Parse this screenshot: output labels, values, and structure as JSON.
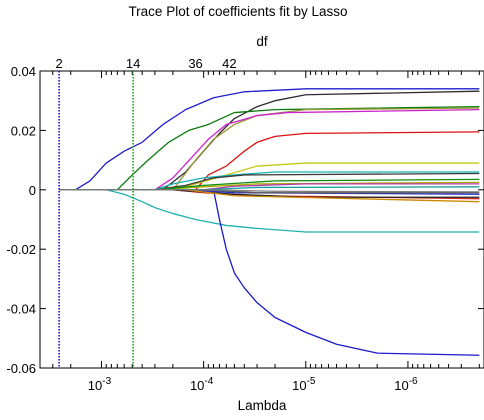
{
  "chart_data": {
    "type": "line",
    "title": "Trace Plot of coefficients fit by Lasso",
    "top_axis_label": "df",
    "xlabel": "Lambda",
    "ylabel": "",
    "x_scale": "log-reversed",
    "xlim_lambda": [
      0.004,
      1.8e-07
    ],
    "ylim": [
      -0.06,
      0.04
    ],
    "y_ticks": [
      "0.04",
      "0.02",
      "0",
      "-0.02",
      "-0.04",
      "-0.06"
    ],
    "x_ticks": [
      {
        "base": "10",
        "exp": "-3",
        "value": 0.001
      },
      {
        "base": "10",
        "exp": "-4",
        "value": 0.0001
      },
      {
        "base": "10",
        "exp": "-5",
        "value": 1e-05
      },
      {
        "base": "10",
        "exp": "-6",
        "value": 1e-06
      }
    ],
    "df_markers": [
      {
        "label": "2",
        "lambda": 0.0026,
        "line": true,
        "color": "#0000cc"
      },
      {
        "label": "14",
        "lambda": 0.00049,
        "line": true,
        "color": "#00aa00"
      },
      {
        "label": "36",
        "lambda": 0.00012,
        "line": false,
        "color": "#000000"
      },
      {
        "label": "42",
        "lambda": 5.6e-05,
        "line": false,
        "color": "#000000"
      }
    ],
    "series": [
      {
        "color": "#1f1fcc",
        "points": [
          [
            0.0026,
            0
          ],
          [
            0.0018,
            0
          ],
          [
            0.0013,
            0.003
          ],
          [
            0.0009,
            0.009
          ],
          [
            0.0006,
            0.013
          ],
          [
            0.0004,
            0.016
          ],
          [
            0.00025,
            0.022
          ],
          [
            0.00015,
            0.027
          ],
          [
            8e-05,
            0.031
          ],
          [
            4e-05,
            0.033
          ],
          [
            1e-05,
            0.034
          ],
          [
            2e-07,
            0.034
          ]
        ]
      },
      {
        "color": "#2d2d2d",
        "points": [
          [
            0.0026,
            0
          ],
          [
            0.00025,
            0
          ],
          [
            0.00015,
            0.006
          ],
          [
            0.0001,
            0.013
          ],
          [
            7e-05,
            0.019
          ],
          [
            5e-05,
            0.024
          ],
          [
            3e-05,
            0.028
          ],
          [
            2e-05,
            0.03
          ],
          [
            1e-05,
            0.032
          ],
          [
            2e-07,
            0.0332
          ]
        ]
      },
      {
        "color": "#0a7a0a",
        "points": [
          [
            0.0026,
            0
          ],
          [
            0.0007,
            0
          ],
          [
            0.0005,
            0.005
          ],
          [
            0.00035,
            0.01
          ],
          [
            0.00022,
            0.016
          ],
          [
            0.00014,
            0.02
          ],
          [
            9e-05,
            0.022
          ],
          [
            5e-05,
            0.026
          ],
          [
            2e-05,
            0.027
          ],
          [
            2e-07,
            0.028
          ]
        ]
      },
      {
        "color": "#9b9b3a",
        "points": [
          [
            0.0026,
            0
          ],
          [
            0.0002,
            0
          ],
          [
            0.00012,
            0.01
          ],
          [
            8e-05,
            0.017
          ],
          [
            5e-05,
            0.022
          ],
          [
            3e-05,
            0.025
          ],
          [
            1e-05,
            0.027
          ],
          [
            2e-07,
            0.0275
          ]
        ]
      },
      {
        "color": "#cc22cc",
        "points": [
          [
            0.0026,
            0
          ],
          [
            0.0003,
            0
          ],
          [
            0.0002,
            0.004
          ],
          [
            0.00013,
            0.011
          ],
          [
            9e-05,
            0.017
          ],
          [
            6e-05,
            0.022
          ],
          [
            3e-05,
            0.025
          ],
          [
            1.5e-05,
            0.026
          ],
          [
            2e-07,
            0.027
          ]
        ]
      },
      {
        "color": "#dd1111",
        "points": [
          [
            0.0026,
            0
          ],
          [
            0.00012,
            0
          ],
          [
            9e-05,
            0.005
          ],
          [
            6e-05,
            0.008
          ],
          [
            4e-05,
            0.013
          ],
          [
            3e-05,
            0.016
          ],
          [
            2e-05,
            0.018
          ],
          [
            1e-05,
            0.019
          ],
          [
            2e-07,
            0.0195
          ]
        ]
      },
      {
        "color": "#c8c814",
        "points": [
          [
            0.0026,
            0
          ],
          [
            0.0002,
            0
          ],
          [
            0.00012,
            0.002
          ],
          [
            6e-05,
            0.005
          ],
          [
            3e-05,
            0.008
          ],
          [
            1e-05,
            0.009
          ],
          [
            2e-07,
            0.009
          ]
        ]
      },
      {
        "color": "#18b0b0",
        "points": [
          [
            0.0026,
            0
          ],
          [
            0.0003,
            0
          ],
          [
            0.0002,
            0.002
          ],
          [
            0.0001,
            0.004
          ],
          [
            5e-05,
            0.005
          ],
          [
            2e-05,
            0.006
          ],
          [
            2e-07,
            0.006
          ]
        ]
      },
      {
        "color": "#3a3a3a",
        "points": [
          [
            0.0026,
            0
          ],
          [
            0.0003,
            0
          ],
          [
            0.00015,
            0.0015
          ],
          [
            8e-05,
            0.004
          ],
          [
            4e-05,
            0.005
          ],
          [
            2e-07,
            0.0055
          ]
        ]
      },
      {
        "color": "#1fb0b0",
        "points": [
          [
            0.0026,
            0
          ],
          [
            0.0009,
            0
          ],
          [
            0.0006,
            -0.0015
          ],
          [
            0.0004,
            -0.004
          ],
          [
            0.0003,
            -0.006
          ],
          [
            0.0002,
            -0.008
          ],
          [
            0.00012,
            -0.01
          ],
          [
            6e-05,
            -0.012
          ],
          [
            3e-05,
            -0.013
          ],
          [
            1e-05,
            -0.0142
          ],
          [
            2e-07,
            -0.0142
          ]
        ]
      },
      {
        "color": "#1a1acc",
        "points": [
          [
            0.0026,
            0
          ],
          [
            8e-05,
            0
          ],
          [
            7e-05,
            -0.01
          ],
          [
            6e-05,
            -0.02
          ],
          [
            5e-05,
            -0.028
          ],
          [
            4e-05,
            -0.033
          ],
          [
            3e-05,
            -0.038
          ],
          [
            2e-05,
            -0.043
          ],
          [
            1e-05,
            -0.048
          ],
          [
            5e-06,
            -0.052
          ],
          [
            2e-06,
            -0.055
          ],
          [
            2e-07,
            -0.0557
          ]
        ]
      },
      {
        "color": "#aaaa00",
        "points": [
          [
            0.0026,
            0
          ],
          [
            0.0003,
            0
          ],
          [
            0.0001,
            0.001
          ],
          [
            3e-05,
            0.002
          ],
          [
            2e-07,
            0.0025
          ]
        ]
      },
      {
        "color": "#dd2222",
        "points": [
          [
            0.0026,
            0
          ],
          [
            0.0002,
            0
          ],
          [
            0.0001,
            -0.001
          ],
          [
            3e-05,
            -0.002
          ],
          [
            2e-07,
            -0.003
          ]
        ]
      },
      {
        "color": "#0c8c0c",
        "points": [
          [
            0.0026,
            0
          ],
          [
            0.0003,
            0
          ],
          [
            0.0001,
            0.0015
          ],
          [
            2e-05,
            0.003
          ],
          [
            2e-07,
            0.0035
          ]
        ]
      },
      {
        "color": "#b03ab0",
        "points": [
          [
            0.0026,
            0
          ],
          [
            0.0001,
            0
          ],
          [
            5e-05,
            0.0012
          ],
          [
            1e-05,
            0.002
          ],
          [
            2e-07,
            0.002
          ]
        ]
      },
      {
        "color": "#222222",
        "points": [
          [
            0.0026,
            0
          ],
          [
            0.0002,
            0
          ],
          [
            5e-05,
            -0.0015
          ],
          [
            1e-05,
            -0.0025
          ],
          [
            2e-07,
            -0.0025
          ]
        ]
      },
      {
        "color": "#2a2acc",
        "points": [
          [
            0.0026,
            0
          ],
          [
            0.00015,
            0
          ],
          [
            5e-05,
            -0.001
          ],
          [
            2e-07,
            -0.0015
          ]
        ]
      },
      {
        "color": "#cc8800",
        "points": [
          [
            0.0026,
            0
          ],
          [
            0.00015,
            0
          ],
          [
            5e-05,
            -0.002
          ],
          [
            2e-07,
            -0.004
          ]
        ]
      },
      {
        "color": "#555555",
        "points": [
          [
            0.0026,
            0
          ],
          [
            0.0001,
            0
          ],
          [
            3e-05,
            -0.001
          ],
          [
            2e-07,
            -0.001
          ]
        ]
      },
      {
        "color": "#18a0a0",
        "points": [
          [
            0.0026,
            0
          ],
          [
            0.0001,
            0
          ],
          [
            3e-05,
            0.0008
          ],
          [
            2e-07,
            0.001
          ]
        ]
      },
      {
        "color": "#7a7a7a",
        "points": [
          [
            0.0026,
            0
          ],
          [
            0.0001,
            0
          ],
          [
            2e-05,
            -0.0005
          ],
          [
            2e-07,
            -0.0007
          ]
        ]
      }
    ]
  }
}
